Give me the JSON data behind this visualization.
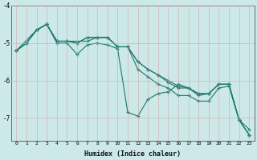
{
  "xlabel": "Humidex (Indice chaleur)",
  "bg_color": "#cce8e8",
  "line_color": "#1a7a6e",
  "grid_color": "#e0f0f0",
  "xlim": [
    -0.5,
    23.5
  ],
  "ylim": [
    -7.6,
    -4.0
  ],
  "yticks": [
    -7,
    -6,
    -5,
    -4
  ],
  "xticks": [
    0,
    1,
    2,
    3,
    4,
    5,
    6,
    7,
    8,
    9,
    10,
    11,
    12,
    13,
    14,
    15,
    16,
    17,
    18,
    19,
    20,
    21,
    22,
    23
  ],
  "series1": [
    [
      0,
      -5.2
    ],
    [
      1,
      -5.0
    ],
    [
      2,
      -4.65
    ],
    [
      3,
      -4.5
    ],
    [
      4,
      -5.0
    ],
    [
      5,
      -5.0
    ],
    [
      6,
      -5.3
    ],
    [
      7,
      -5.05
    ],
    [
      8,
      -5.0
    ],
    [
      9,
      -5.05
    ],
    [
      10,
      -5.15
    ],
    [
      11,
      -6.85
    ],
    [
      12,
      -6.95
    ],
    [
      13,
      -6.5
    ],
    [
      14,
      -6.35
    ],
    [
      15,
      -6.3
    ],
    [
      16,
      -6.1
    ],
    [
      17,
      -6.2
    ],
    [
      18,
      -6.4
    ],
    [
      19,
      -6.35
    ],
    [
      20,
      -6.1
    ],
    [
      21,
      -6.1
    ],
    [
      22,
      -7.05
    ],
    [
      23,
      -7.3
    ]
  ],
  "series2": [
    [
      0,
      -5.2
    ],
    [
      1,
      -5.0
    ],
    [
      2,
      -4.65
    ],
    [
      3,
      -4.5
    ],
    [
      4,
      -4.95
    ],
    [
      5,
      -4.95
    ],
    [
      6,
      -5.0
    ],
    [
      7,
      -4.85
    ],
    [
      8,
      -4.85
    ],
    [
      9,
      -4.85
    ],
    [
      10,
      -5.1
    ],
    [
      11,
      -5.1
    ],
    [
      12,
      -5.5
    ],
    [
      13,
      -5.7
    ],
    [
      14,
      -5.85
    ],
    [
      15,
      -6.05
    ],
    [
      16,
      -6.2
    ],
    [
      17,
      -6.2
    ],
    [
      18,
      -6.35
    ],
    [
      19,
      -6.35
    ],
    [
      20,
      -6.1
    ],
    [
      21,
      -6.1
    ],
    [
      22,
      -7.05
    ],
    [
      23,
      -7.45
    ]
  ],
  "series3": [
    [
      0,
      -5.2
    ],
    [
      2,
      -4.65
    ],
    [
      3,
      -4.5
    ],
    [
      4,
      -4.95
    ],
    [
      5,
      -4.95
    ],
    [
      6,
      -5.0
    ],
    [
      7,
      -4.85
    ],
    [
      8,
      -4.85
    ],
    [
      9,
      -4.85
    ],
    [
      10,
      -5.1
    ],
    [
      11,
      -5.1
    ],
    [
      12,
      -5.5
    ],
    [
      13,
      -5.7
    ],
    [
      14,
      -5.85
    ],
    [
      15,
      -6.0
    ],
    [
      16,
      -6.15
    ],
    [
      17,
      -6.2
    ],
    [
      18,
      -6.35
    ],
    [
      19,
      -6.35
    ],
    [
      20,
      -6.1
    ],
    [
      21,
      -6.1
    ],
    [
      22,
      -7.05
    ],
    [
      23,
      -7.45
    ]
  ],
  "series4": [
    [
      0,
      -5.2
    ],
    [
      1,
      -5.0
    ],
    [
      2,
      -4.65
    ],
    [
      3,
      -4.5
    ],
    [
      4,
      -4.95
    ],
    [
      5,
      -4.95
    ],
    [
      7,
      -4.95
    ],
    [
      8,
      -4.85
    ],
    [
      9,
      -4.85
    ],
    [
      10,
      -5.1
    ],
    [
      11,
      -5.1
    ],
    [
      12,
      -5.7
    ],
    [
      13,
      -5.9
    ],
    [
      14,
      -6.1
    ],
    [
      15,
      -6.2
    ],
    [
      16,
      -6.4
    ],
    [
      17,
      -6.4
    ],
    [
      18,
      -6.55
    ],
    [
      19,
      -6.55
    ],
    [
      20,
      -6.2
    ],
    [
      21,
      -6.15
    ],
    [
      22,
      -7.05
    ],
    [
      23,
      -7.45
    ]
  ]
}
